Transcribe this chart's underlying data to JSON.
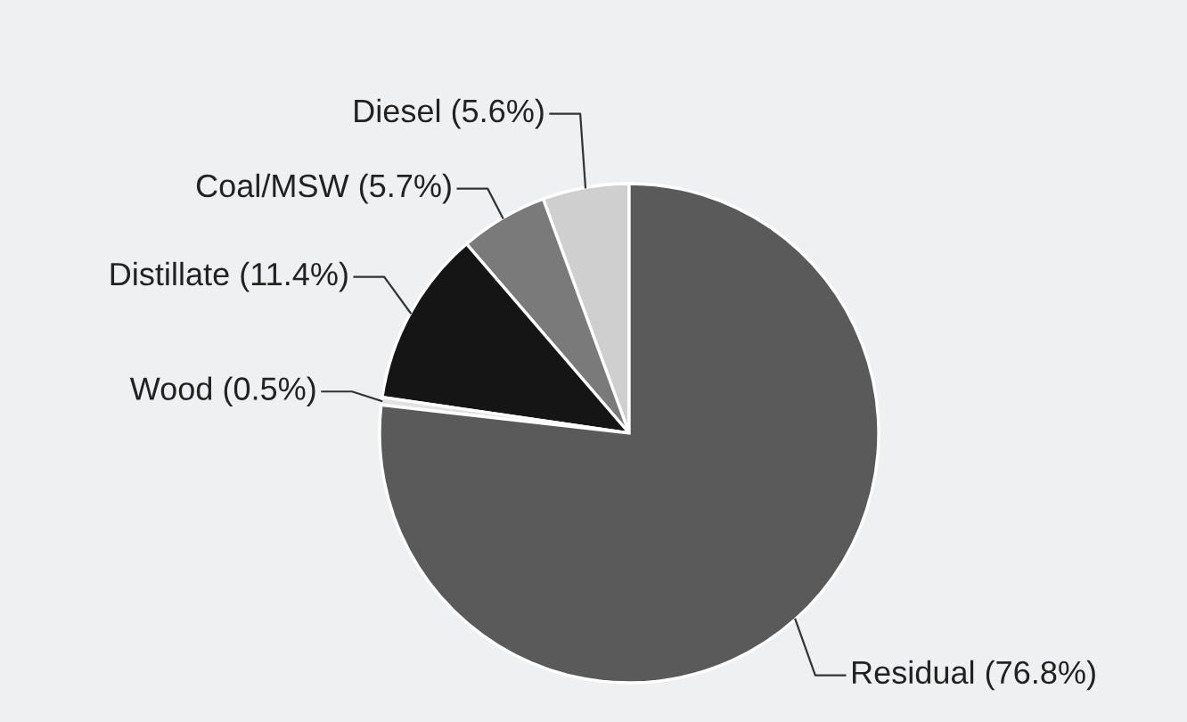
{
  "chart_data": {
    "type": "pie",
    "categories": [
      "Diesel (5.6%)",
      "Coal/MSW (5.7%)",
      "Distillate (11.4%)",
      "Wood (0.5%)",
      "Residual (76.8%)"
    ],
    "values": [
      5.6,
      5.7,
      11.4,
      0.5,
      76.8
    ],
    "colors": [
      "#cfcfcf",
      "#7a7a7a",
      "#151515",
      "#e2e2e2",
      "#5a5a5a"
    ]
  }
}
